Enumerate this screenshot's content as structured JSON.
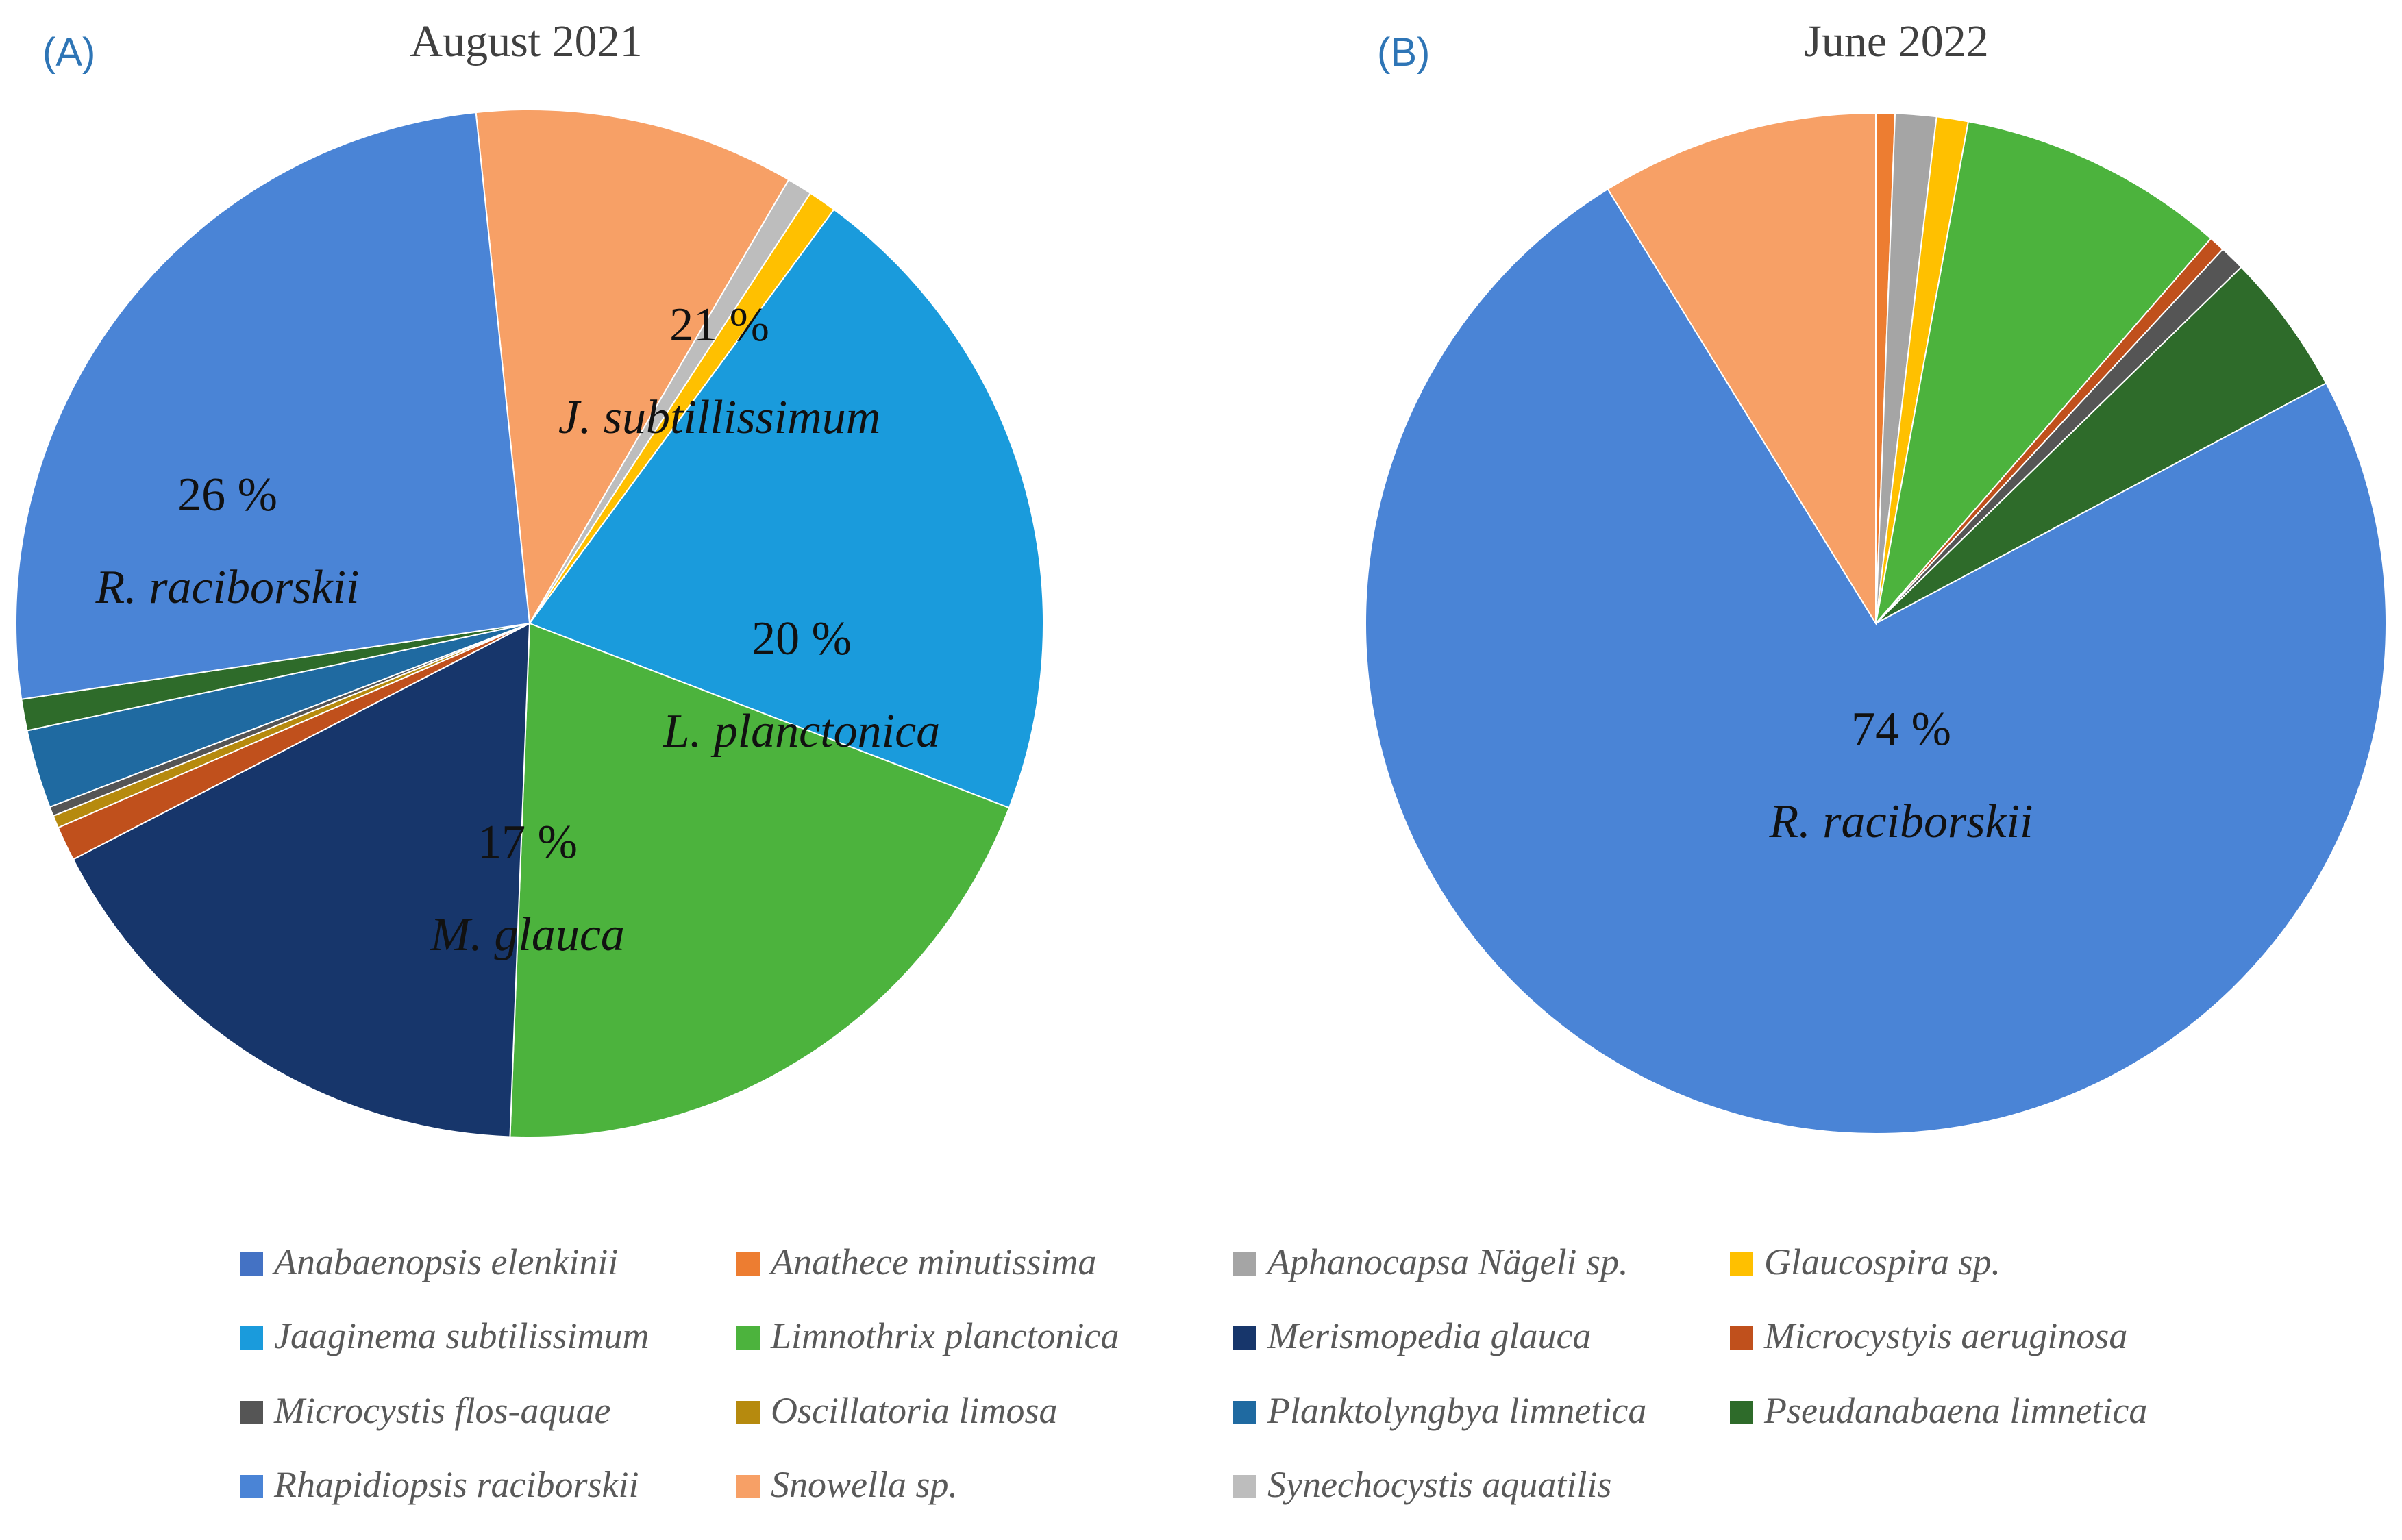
{
  "chart_data": [
    {
      "type": "pie",
      "panel_label": "(A)",
      "title": "August 2021",
      "slices": [
        {
          "name": "Snowella sp.",
          "value": 10.2
        },
        {
          "name": "Synechocystis aquatilis",
          "value": 0.8
        },
        {
          "name": "Glaucospira sp.",
          "value": 0.9
        },
        {
          "name": "Jaaginema subtilissimum",
          "value": 21
        },
        {
          "name": "Limnothrix planctonica",
          "value": 20
        },
        {
          "name": "Merismopedia glauca",
          "value": 17
        },
        {
          "name": "Microcystyis aeruginosa",
          "value": 1.1
        },
        {
          "name": "Oscillatoria limosa",
          "value": 0.4
        },
        {
          "name": "Microcystis flos-aquae",
          "value": 0.3
        },
        {
          "name": "Planktolyngbya limnetica",
          "value": 2.5
        },
        {
          "name": "Pseudanabaena limnetica",
          "value": 1.0
        },
        {
          "name": "Rhapidiopsis raciborskii",
          "value": 26
        }
      ],
      "labels": [
        {
          "species": "Jaaginema subtilissimum",
          "percent": "21 %",
          "name": "J. subtillissimum"
        },
        {
          "species": "Limnothrix planctonica",
          "percent": "20 %",
          "name": "L. planctonica"
        },
        {
          "species": "Merismopedia glauca",
          "percent": "17 %",
          "name": "M. glauca"
        },
        {
          "species": "Rhapidiopsis raciborskii",
          "percent": "26 %",
          "name": "R. raciborskii"
        }
      ]
    },
    {
      "type": "pie",
      "panel_label": "(B)",
      "title": "June 2022",
      "slices": [
        {
          "name": "Anathece minutissima",
          "value": 0.6
        },
        {
          "name": "Aphanocapsa Nägeli sp.",
          "value": 1.3
        },
        {
          "name": "Glaucospira sp.",
          "value": 1.0
        },
        {
          "name": "Limnothrix planctonica",
          "value": 8.5
        },
        {
          "name": "Microcystyis aeruginosa",
          "value": 0.5
        },
        {
          "name": "Microcystis flos-aquae",
          "value": 0.8
        },
        {
          "name": "Pseudanabaena limnetica",
          "value": 4.5
        },
        {
          "name": "Rhapidiopsis raciborskii",
          "value": 74
        },
        {
          "name": "Snowella sp.",
          "value": 8.8
        }
      ],
      "labels": [
        {
          "species": "Rhapidiopsis raciborskii",
          "percent": "74 %",
          "name": "R. raciborskii"
        }
      ]
    }
  ],
  "legend": [
    {
      "name": "Anabaenopsis elenkinii",
      "color": "#4472C4"
    },
    {
      "name": "Anathece minutissima",
      "color": "#ED7D31"
    },
    {
      "name": "Aphanocapsa Nägeli sp.",
      "color": "#A5A5A5"
    },
    {
      "name": "Glaucospira sp.",
      "color": "#FFC000"
    },
    {
      "name": "Jaaginema subtilissimum",
      "color": "#1A9BDC"
    },
    {
      "name": "Limnothrix planctonica",
      "color": "#4CB33D"
    },
    {
      "name": "Merismopedia glauca",
      "color": "#17366B"
    },
    {
      "name": "Microcystyis aeruginosa",
      "color": "#C0501C"
    },
    {
      "name": "Microcystis flos-aquae",
      "color": "#555555"
    },
    {
      "name": "Oscillatoria limosa",
      "color": "#B68A0E"
    },
    {
      "name": "Planktolyngbya limnetica",
      "color": "#1F6AA1"
    },
    {
      "name": "Pseudanabaena limnetica",
      "color": "#2E6B2A"
    },
    {
      "name": "Rhapidiopsis raciborskii",
      "color": "#4A84D6"
    },
    {
      "name": "Snowella sp.",
      "color": "#F7A066"
    },
    {
      "name": "Synechocystis aquatilis",
      "color": "#BDBDBD"
    }
  ],
  "colors": {
    "panel_label": "#2E75B6",
    "title": "#404040"
  }
}
